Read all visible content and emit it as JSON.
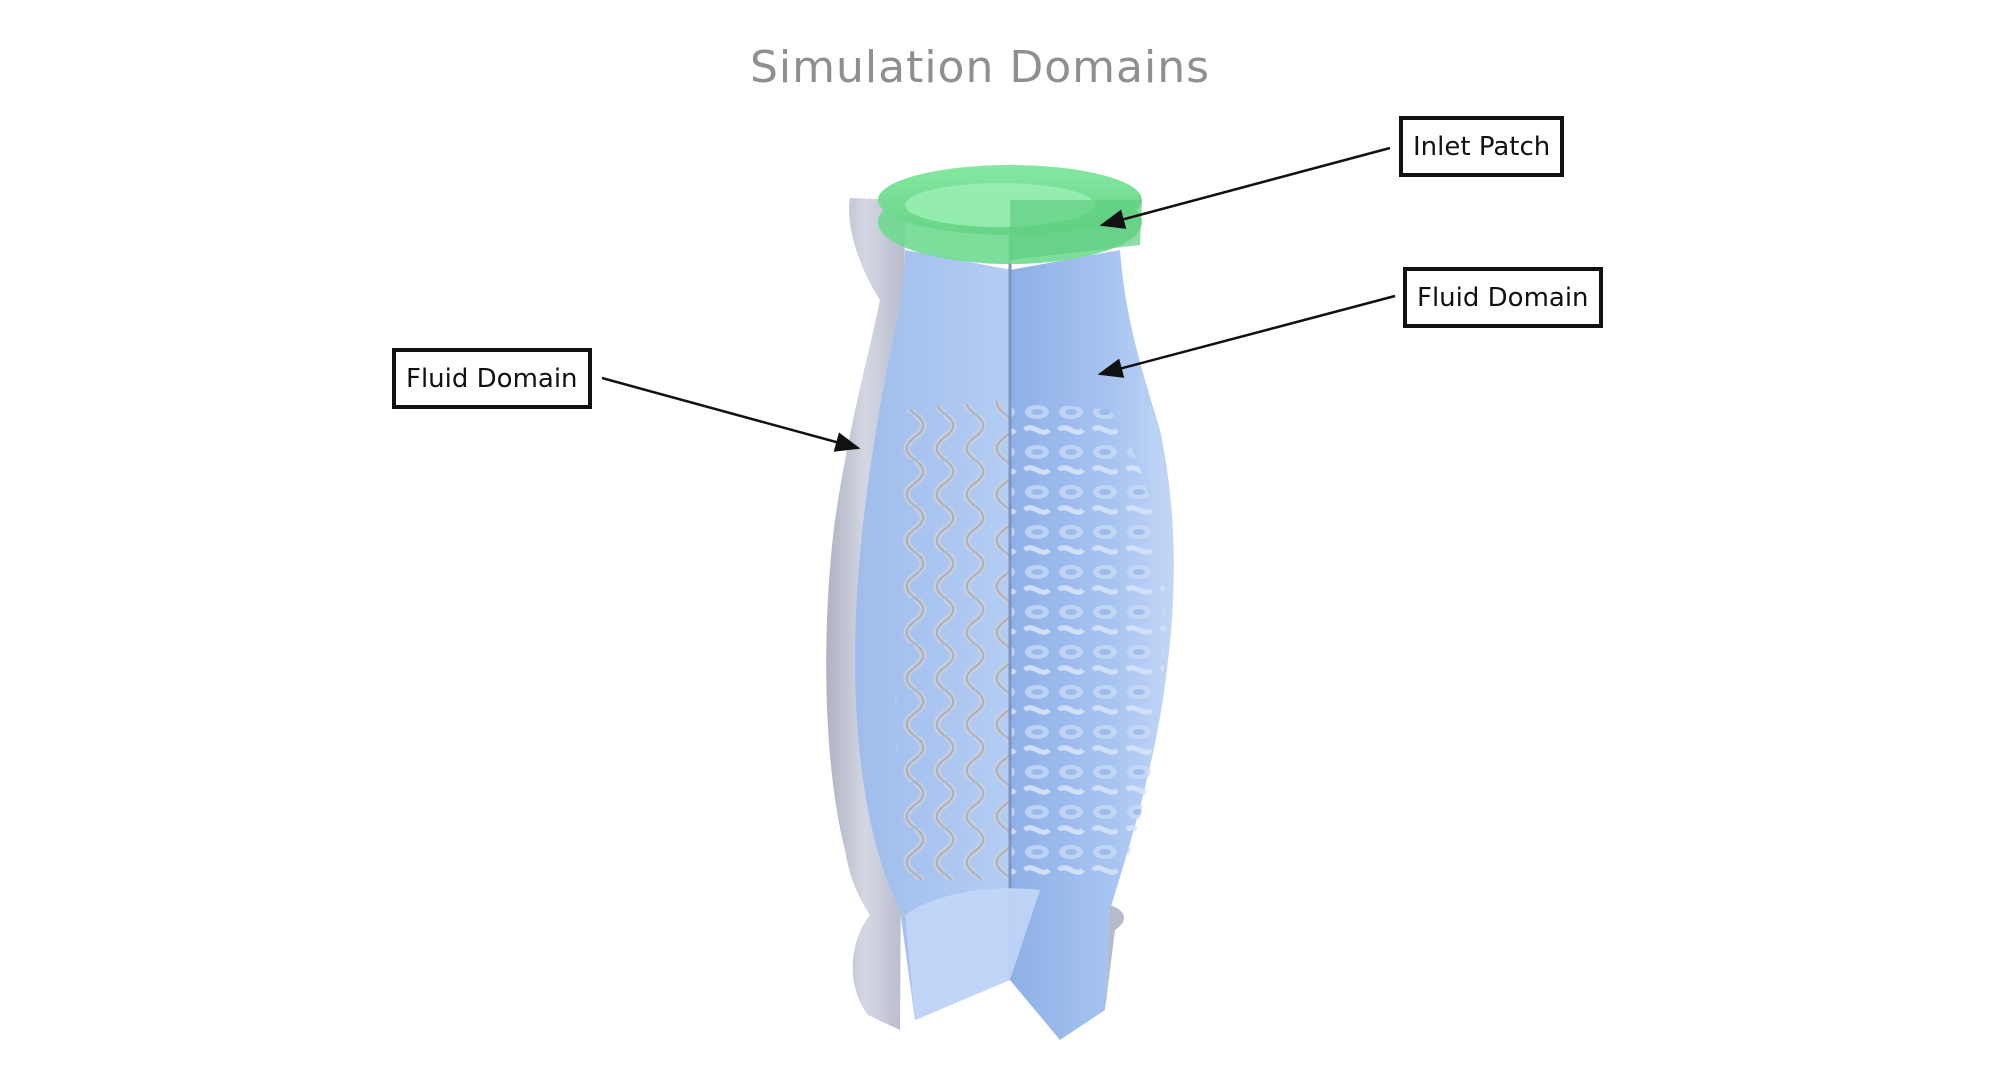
{
  "figure": {
    "title": "Simulation Domains"
  },
  "annotations": {
    "inlet_patch": "Inlet Patch",
    "fluid_domain_right": "Fluid Domain",
    "fluid_domain_left": "Fluid Domain"
  },
  "colors": {
    "inlet_patch": "#7fe39a",
    "fluid_domain": "#a9c6f3",
    "outer_wall": "#c9ccdb",
    "lattice": "#b9c3d6",
    "arrows": "#111111",
    "title_text": "#8f8f8f"
  }
}
